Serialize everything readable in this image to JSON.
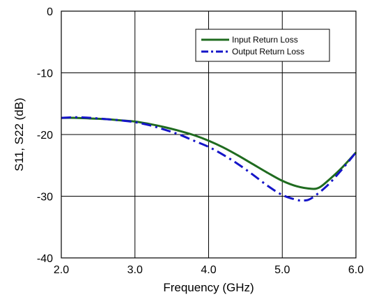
{
  "chart_data": {
    "type": "line",
    "title": "",
    "xlabel": "Frequency (GHz)",
    "ylabel": "S11, S22 (dB)",
    "xlim": [
      2.0,
      6.0
    ],
    "ylim": [
      -40,
      0
    ],
    "x_ticks": [
      2.0,
      3.0,
      4.0,
      5.0,
      6.0
    ],
    "x_tick_labels": [
      "2.0",
      "3.0",
      "4.0",
      "5.0",
      "6.0"
    ],
    "y_ticks": [
      0,
      -10,
      -20,
      -30,
      -40
    ],
    "y_tick_labels": [
      "0",
      "-10",
      "-20",
      "-30",
      "-40"
    ],
    "grid": true,
    "legend_position": "top-right",
    "series": [
      {
        "name": "Input Return Loss",
        "color": "#1f6b1f",
        "dash": "solid",
        "x": [
          2.0,
          2.2,
          2.4,
          2.6,
          2.8,
          3.0,
          3.2,
          3.4,
          3.6,
          3.8,
          4.0,
          4.2,
          4.4,
          4.6,
          4.8,
          5.0,
          5.2,
          5.4,
          5.5,
          5.6,
          5.8,
          6.0
        ],
        "y": [
          -17.3,
          -17.3,
          -17.4,
          -17.5,
          -17.7,
          -17.9,
          -18.3,
          -18.8,
          -19.4,
          -20.1,
          -21.0,
          -22.1,
          -23.4,
          -24.8,
          -26.2,
          -27.5,
          -28.4,
          -28.8,
          -28.6,
          -27.7,
          -25.5,
          -22.9
        ]
      },
      {
        "name": "Output Return Loss",
        "color": "#1515c8",
        "dash": "dashdot",
        "x": [
          2.0,
          2.2,
          2.4,
          2.6,
          2.8,
          3.0,
          3.2,
          3.4,
          3.6,
          3.8,
          4.0,
          4.2,
          4.4,
          4.6,
          4.8,
          5.0,
          5.2,
          5.3,
          5.4,
          5.6,
          5.8,
          6.0
        ],
        "y": [
          -17.3,
          -17.2,
          -17.3,
          -17.5,
          -17.7,
          -18.0,
          -18.5,
          -19.2,
          -20.0,
          -21.0,
          -22.0,
          -23.3,
          -24.8,
          -26.5,
          -28.3,
          -29.8,
          -30.6,
          -30.7,
          -30.3,
          -28.4,
          -25.8,
          -22.9
        ]
      }
    ]
  }
}
